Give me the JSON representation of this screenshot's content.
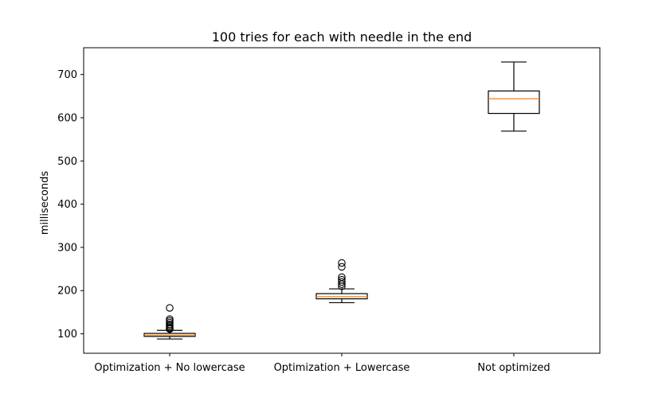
{
  "chart_data": {
    "type": "boxplot",
    "title": "100 tries for each with needle in the end",
    "xlabel": "",
    "ylabel": "milliseconds",
    "ylim": [
      55,
      762
    ],
    "yticks": [
      100,
      200,
      300,
      400,
      500,
      600,
      700
    ],
    "grid": false,
    "categories": [
      "Optimization + No lowercase",
      "Optimization + Lowercase",
      "Not optimized"
    ],
    "boxes": [
      {
        "name": "Optimization + No lowercase",
        "whisker_low": 88,
        "q1": 94,
        "median": 97,
        "q3": 101,
        "whisker_high": 108,
        "outliers": [
          111,
          113,
          116,
          119,
          122,
          126,
          130,
          134,
          160
        ]
      },
      {
        "name": "Optimization + Lowercase",
        "whisker_low": 172,
        "q1": 181,
        "median": 186,
        "q3": 193,
        "whisker_high": 204,
        "outliers": [
          210,
          215,
          220,
          225,
          231,
          255,
          264
        ]
      },
      {
        "name": "Not optimized",
        "whisker_low": 569,
        "q1": 610,
        "median": 644,
        "q3": 662,
        "whisker_high": 729,
        "outliers": []
      }
    ],
    "colors": {
      "box": "#000000",
      "median": "#ff7f0e",
      "background": "#ffffff"
    }
  }
}
